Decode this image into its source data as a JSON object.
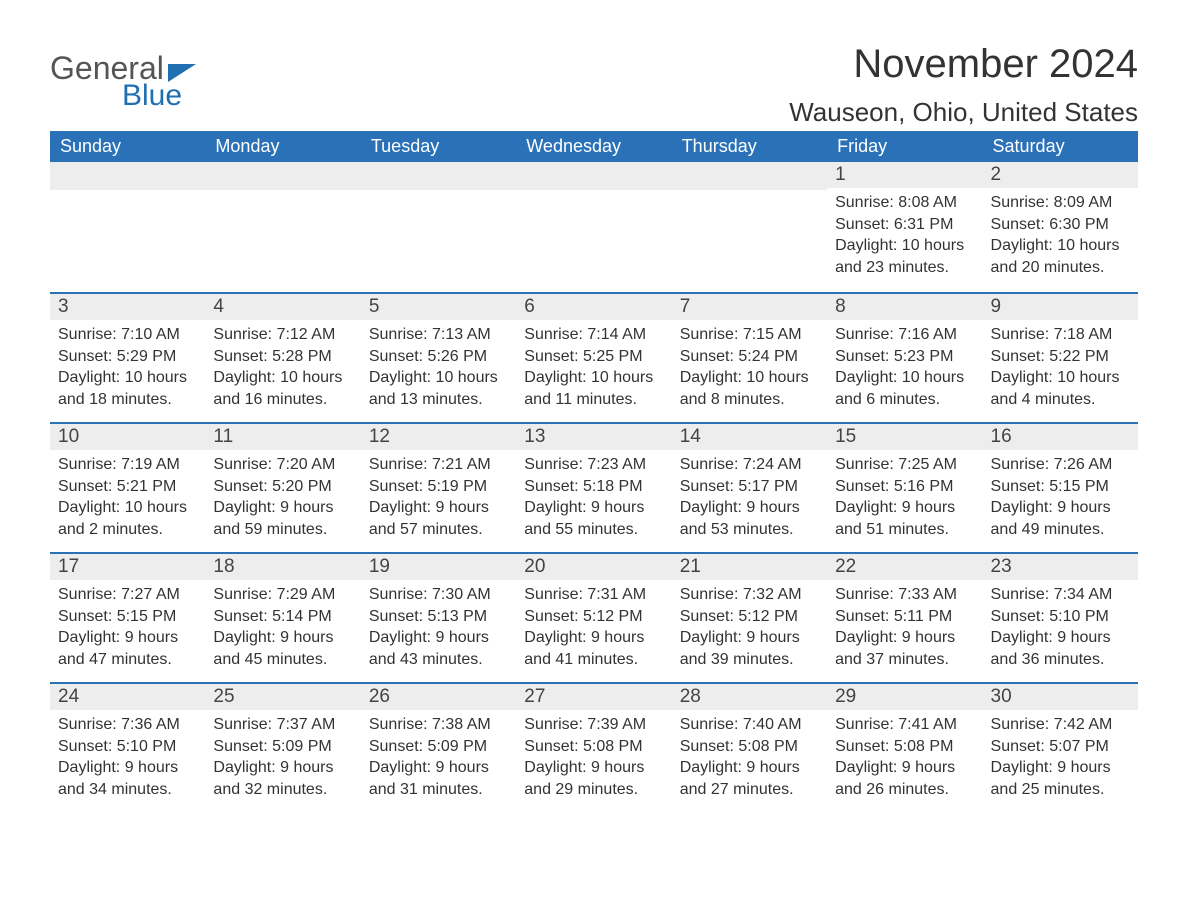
{
  "logo": {
    "text1": "General",
    "text2": "Blue",
    "shape_color": "#1f6fb2",
    "text1_color": "#555555",
    "text2_color": "#1f6fb2"
  },
  "title": "November 2024",
  "location": "Wauseon, Ohio, United States",
  "colors": {
    "header_bg": "#2a71b8",
    "header_text": "#ffffff",
    "daynum_bg": "#ededed",
    "day_border": "#2a71b8",
    "body_text": "#333333"
  },
  "weekdays": [
    "Sunday",
    "Monday",
    "Tuesday",
    "Wednesday",
    "Thursday",
    "Friday",
    "Saturday"
  ],
  "leading_blanks": 5,
  "days": [
    {
      "n": 1,
      "sunrise": "8:08 AM",
      "sunset": "6:31 PM",
      "daylight": "10 hours and 23 minutes."
    },
    {
      "n": 2,
      "sunrise": "8:09 AM",
      "sunset": "6:30 PM",
      "daylight": "10 hours and 20 minutes."
    },
    {
      "n": 3,
      "sunrise": "7:10 AM",
      "sunset": "5:29 PM",
      "daylight": "10 hours and 18 minutes."
    },
    {
      "n": 4,
      "sunrise": "7:12 AM",
      "sunset": "5:28 PM",
      "daylight": "10 hours and 16 minutes."
    },
    {
      "n": 5,
      "sunrise": "7:13 AM",
      "sunset": "5:26 PM",
      "daylight": "10 hours and 13 minutes."
    },
    {
      "n": 6,
      "sunrise": "7:14 AM",
      "sunset": "5:25 PM",
      "daylight": "10 hours and 11 minutes."
    },
    {
      "n": 7,
      "sunrise": "7:15 AM",
      "sunset": "5:24 PM",
      "daylight": "10 hours and 8 minutes."
    },
    {
      "n": 8,
      "sunrise": "7:16 AM",
      "sunset": "5:23 PM",
      "daylight": "10 hours and 6 minutes."
    },
    {
      "n": 9,
      "sunrise": "7:18 AM",
      "sunset": "5:22 PM",
      "daylight": "10 hours and 4 minutes."
    },
    {
      "n": 10,
      "sunrise": "7:19 AM",
      "sunset": "5:21 PM",
      "daylight": "10 hours and 2 minutes."
    },
    {
      "n": 11,
      "sunrise": "7:20 AM",
      "sunset": "5:20 PM",
      "daylight": "9 hours and 59 minutes."
    },
    {
      "n": 12,
      "sunrise": "7:21 AM",
      "sunset": "5:19 PM",
      "daylight": "9 hours and 57 minutes."
    },
    {
      "n": 13,
      "sunrise": "7:23 AM",
      "sunset": "5:18 PM",
      "daylight": "9 hours and 55 minutes."
    },
    {
      "n": 14,
      "sunrise": "7:24 AM",
      "sunset": "5:17 PM",
      "daylight": "9 hours and 53 minutes."
    },
    {
      "n": 15,
      "sunrise": "7:25 AM",
      "sunset": "5:16 PM",
      "daylight": "9 hours and 51 minutes."
    },
    {
      "n": 16,
      "sunrise": "7:26 AM",
      "sunset": "5:15 PM",
      "daylight": "9 hours and 49 minutes."
    },
    {
      "n": 17,
      "sunrise": "7:27 AM",
      "sunset": "5:15 PM",
      "daylight": "9 hours and 47 minutes."
    },
    {
      "n": 18,
      "sunrise": "7:29 AM",
      "sunset": "5:14 PM",
      "daylight": "9 hours and 45 minutes."
    },
    {
      "n": 19,
      "sunrise": "7:30 AM",
      "sunset": "5:13 PM",
      "daylight": "9 hours and 43 minutes."
    },
    {
      "n": 20,
      "sunrise": "7:31 AM",
      "sunset": "5:12 PM",
      "daylight": "9 hours and 41 minutes."
    },
    {
      "n": 21,
      "sunrise": "7:32 AM",
      "sunset": "5:12 PM",
      "daylight": "9 hours and 39 minutes."
    },
    {
      "n": 22,
      "sunrise": "7:33 AM",
      "sunset": "5:11 PM",
      "daylight": "9 hours and 37 minutes."
    },
    {
      "n": 23,
      "sunrise": "7:34 AM",
      "sunset": "5:10 PM",
      "daylight": "9 hours and 36 minutes."
    },
    {
      "n": 24,
      "sunrise": "7:36 AM",
      "sunset": "5:10 PM",
      "daylight": "9 hours and 34 minutes."
    },
    {
      "n": 25,
      "sunrise": "7:37 AM",
      "sunset": "5:09 PM",
      "daylight": "9 hours and 32 minutes."
    },
    {
      "n": 26,
      "sunrise": "7:38 AM",
      "sunset": "5:09 PM",
      "daylight": "9 hours and 31 minutes."
    },
    {
      "n": 27,
      "sunrise": "7:39 AM",
      "sunset": "5:08 PM",
      "daylight": "9 hours and 29 minutes."
    },
    {
      "n": 28,
      "sunrise": "7:40 AM",
      "sunset": "5:08 PM",
      "daylight": "9 hours and 27 minutes."
    },
    {
      "n": 29,
      "sunrise": "7:41 AM",
      "sunset": "5:08 PM",
      "daylight": "9 hours and 26 minutes."
    },
    {
      "n": 30,
      "sunrise": "7:42 AM",
      "sunset": "5:07 PM",
      "daylight": "9 hours and 25 minutes."
    }
  ],
  "labels": {
    "sunrise": "Sunrise: ",
    "sunset": "Sunset: ",
    "daylight": "Daylight: "
  },
  "typography": {
    "title_fontsize": 40,
    "location_fontsize": 26,
    "header_fontsize": 18,
    "daynum_fontsize": 19,
    "body_fontsize": 16
  }
}
